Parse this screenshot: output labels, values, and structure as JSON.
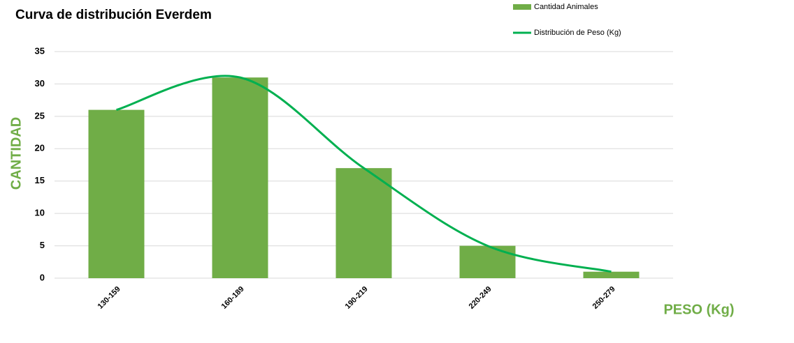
{
  "chart_data": {
    "type": "bar",
    "title": "Curva de distribución Everdem",
    "x_label": "PESO (Kg)",
    "y_label": "CANTIDAD",
    "categories": [
      "130-159",
      "160-189",
      "190-219",
      "220-249",
      "250-279"
    ],
    "series": [
      {
        "name": "Cantidad Animales",
        "type": "bar",
        "color": "#70ad47",
        "values": [
          26,
          31,
          17,
          5,
          1
        ]
      },
      {
        "name": "Distribución de Peso (Kg)",
        "type": "line",
        "color": "#00b050",
        "values": [
          26,
          31,
          17,
          5,
          1
        ]
      }
    ],
    "ylim": [
      0,
      35
    ],
    "yticks": [
      0,
      5,
      10,
      15,
      20,
      25,
      30,
      35
    ],
    "grid": true,
    "legend": "top-right"
  }
}
